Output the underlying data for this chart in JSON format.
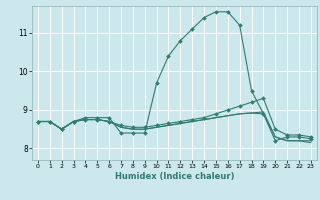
{
  "title": "",
  "xlabel": "Humidex (Indice chaleur)",
  "bg_color": "#cce8ec",
  "grid_color": "#ffffff",
  "line_color": "#2e7d6e",
  "xlim": [
    -0.5,
    23.5
  ],
  "ylim": [
    7.7,
    11.7
  ],
  "yticks": [
    8,
    9,
    10,
    11
  ],
  "xticks": [
    0,
    1,
    2,
    3,
    4,
    5,
    6,
    7,
    8,
    9,
    10,
    11,
    12,
    13,
    14,
    15,
    16,
    17,
    18,
    19,
    20,
    21,
    22,
    23
  ],
  "series": [
    {
      "x": [
        0,
        1,
        2,
        3,
        4,
        5,
        6,
        7,
        8,
        9,
        10,
        11,
        12,
        13,
        14,
        15,
        16,
        17,
        18,
        19,
        20,
        21,
        22,
        23
      ],
      "y": [
        8.7,
        8.7,
        8.5,
        8.7,
        8.8,
        8.8,
        8.8,
        8.4,
        8.4,
        8.4,
        9.7,
        10.4,
        10.8,
        11.1,
        11.4,
        11.55,
        11.55,
        11.2,
        9.5,
        8.9,
        8.2,
        8.3,
        8.3,
        8.25
      ],
      "marker": "D",
      "markersize": 2.0
    },
    {
      "x": [
        0,
        1,
        2,
        3,
        4,
        5,
        6,
        7,
        8,
        9,
        10,
        11,
        12,
        13,
        14,
        15,
        16,
        17,
        18,
        19,
        20,
        21,
        22,
        23
      ],
      "y": [
        8.7,
        8.7,
        8.5,
        8.7,
        8.75,
        8.75,
        8.7,
        8.6,
        8.55,
        8.55,
        8.6,
        8.65,
        8.7,
        8.75,
        8.8,
        8.9,
        9.0,
        9.1,
        9.2,
        9.3,
        8.5,
        8.35,
        8.35,
        8.3
      ],
      "marker": "D",
      "markersize": 2.0
    },
    {
      "x": [
        0,
        1,
        2,
        3,
        4,
        5,
        6,
        7,
        8,
        9,
        10,
        11,
        12,
        13,
        14,
        15,
        16,
        17,
        18,
        19,
        20,
        21,
        22,
        23
      ],
      "y": [
        8.7,
        8.7,
        8.5,
        8.7,
        8.75,
        8.75,
        8.7,
        8.55,
        8.5,
        8.5,
        8.55,
        8.6,
        8.65,
        8.7,
        8.75,
        8.8,
        8.85,
        8.9,
        8.92,
        8.95,
        8.3,
        8.2,
        8.2,
        8.15
      ],
      "marker": null,
      "markersize": 0
    },
    {
      "x": [
        0,
        1,
        2,
        3,
        4,
        5,
        6,
        7,
        8,
        9,
        10,
        11,
        12,
        13,
        14,
        15,
        16,
        17,
        18,
        19,
        20,
        21,
        22,
        23
      ],
      "y": [
        8.7,
        8.7,
        8.5,
        8.7,
        8.75,
        8.75,
        8.7,
        8.55,
        8.5,
        8.5,
        8.55,
        8.6,
        8.65,
        8.7,
        8.75,
        8.8,
        8.85,
        8.9,
        8.92,
        8.9,
        8.3,
        8.2,
        8.2,
        8.2
      ],
      "marker": null,
      "markersize": 0
    }
  ]
}
